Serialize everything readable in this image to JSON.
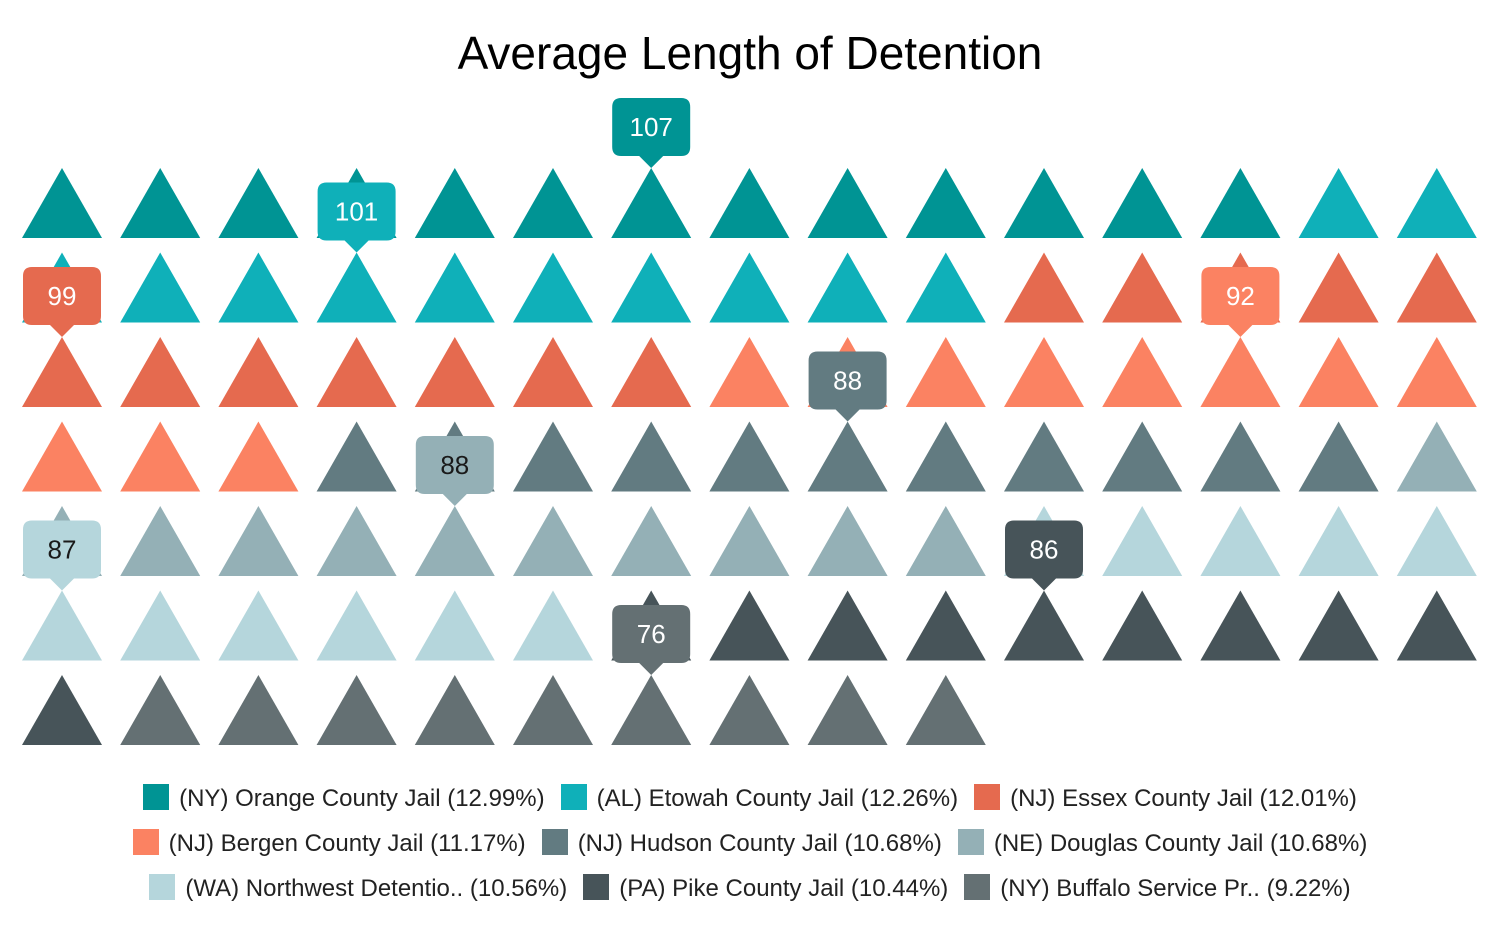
{
  "chart_data": {
    "type": "pictogram",
    "title": "Average Length of Detention",
    "icon": "triangle-icon",
    "series": [
      {
        "name": "(NY) Orange County Jail",
        "share": "12.99%",
        "count": 13,
        "value": 107,
        "color": "#009494"
      },
      {
        "name": "(AL) Etowah County Jail",
        "share": "12.26%",
        "count": 12,
        "value": 101,
        "color": "#0fb0b9"
      },
      {
        "name": "(NJ) Essex County Jail",
        "share": "12.01%",
        "count": 12,
        "value": 99,
        "color": "#e56a4f"
      },
      {
        "name": "(NJ) Bergen County Jail",
        "share": "11.17%",
        "count": 11,
        "value": 92,
        "color": "#fb8262"
      },
      {
        "name": "(NJ) Hudson County Jail",
        "share": "10.68%",
        "count": 11,
        "value": 88,
        "color": "#627b81"
      },
      {
        "name": "(NE) Douglas County Jail",
        "share": "10.68%",
        "count": 11,
        "value": 88,
        "color": "#94b0b6"
      },
      {
        "name": "(WA) Northwest Detentio..",
        "share": "10.56%",
        "count": 11,
        "value": 87,
        "color": "#b5d6dc"
      },
      {
        "name": "(PA) Pike County Jail",
        "share": "10.44%",
        "count": 10,
        "value": 86,
        "color": "#475459"
      },
      {
        "name": "(NY) Buffalo Service Pr..",
        "share": "9.22%",
        "count": 9,
        "value": 76,
        "color": "#647073"
      }
    ],
    "legend_position": "bottom",
    "grid": false
  }
}
